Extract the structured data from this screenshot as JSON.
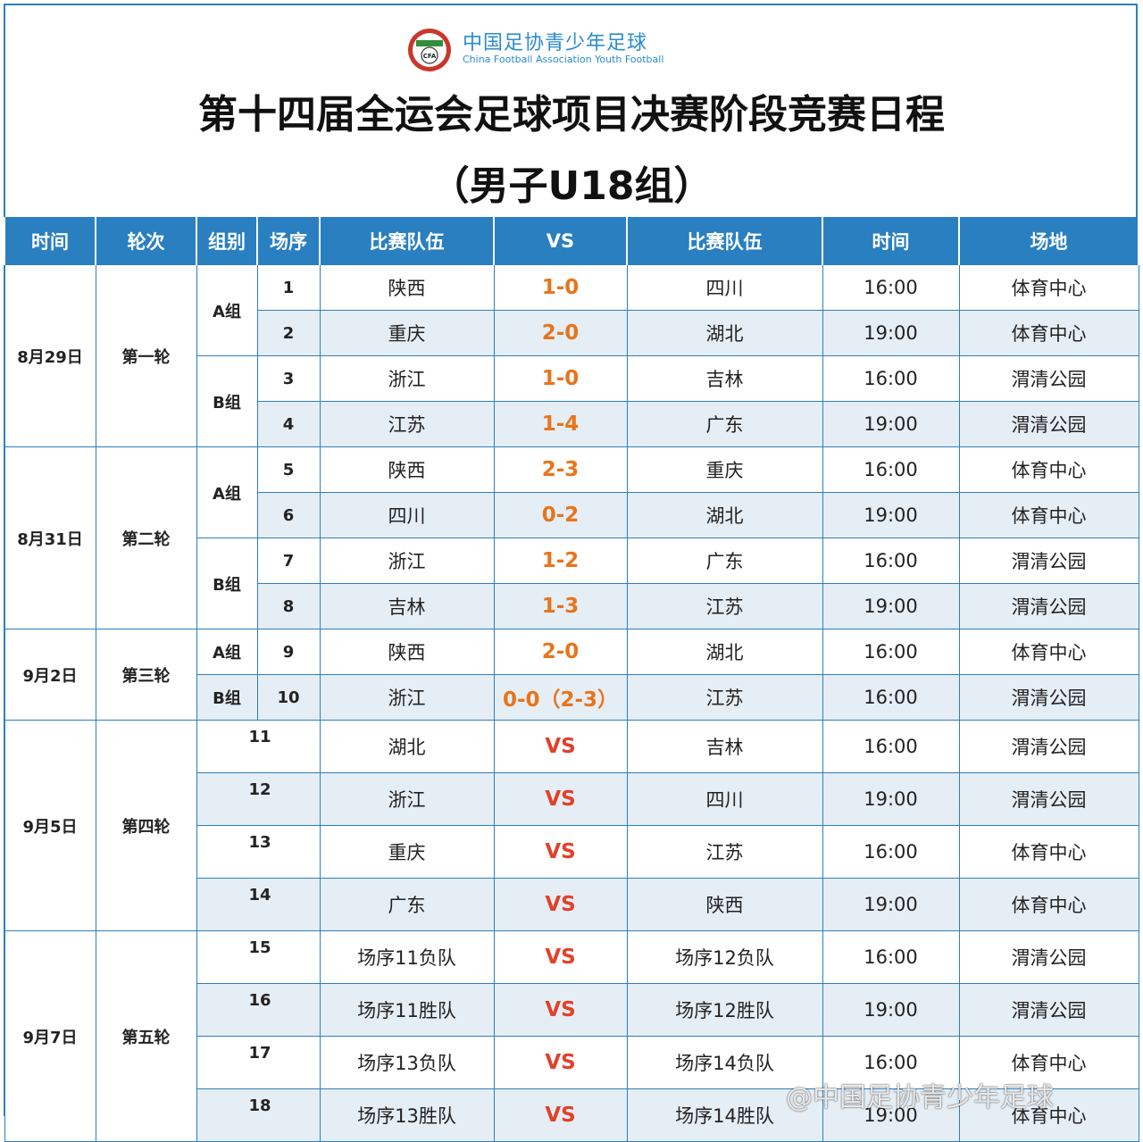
{
  "brand": {
    "name_cn": "中国足协青少年足球",
    "name_en": "China Football Association Youth Football",
    "logo_text": "CFA",
    "colors": {
      "primary": "#2a7fc1",
      "score": "#e8741c",
      "vs": "#e2412a",
      "stripe": "#e6eef5"
    }
  },
  "title": "第十四届全运会足球项目决赛阶段竞赛日程",
  "subtitle": "（男子U18组）",
  "headers": [
    "时间",
    "轮次",
    "组别",
    "场序",
    "比赛队伍",
    "VS",
    "比赛队伍",
    "时间",
    "场地"
  ],
  "days": [
    {
      "date": "8月29日",
      "round": "第一轮"
    },
    {
      "date": "8月31日",
      "round": "第二轮"
    },
    {
      "date": "9月2日",
      "round": "第三轮"
    },
    {
      "date": "9月5日",
      "round": "第四轮"
    },
    {
      "date": "9月7日",
      "round": "第五轮"
    }
  ],
  "groups": {
    "a": "A组",
    "b": "B组"
  },
  "matches": [
    {
      "seq": "1",
      "home": "陕西",
      "score": "1-0",
      "away": "四川",
      "time": "16:00",
      "venue": "体育中心"
    },
    {
      "seq": "2",
      "home": "重庆",
      "score": "2-0",
      "away": "湖北",
      "time": "19:00",
      "venue": "体育中心"
    },
    {
      "seq": "3",
      "home": "浙江",
      "score": "1-0",
      "away": "吉林",
      "time": "16:00",
      "venue": "渭清公园"
    },
    {
      "seq": "4",
      "home": "江苏",
      "score": "1-4",
      "away": "广东",
      "time": "19:00",
      "venue": "渭清公园"
    },
    {
      "seq": "5",
      "home": "陕西",
      "score": "2-3",
      "away": "重庆",
      "time": "16:00",
      "venue": "体育中心"
    },
    {
      "seq": "6",
      "home": "四川",
      "score": "0-2",
      "away": "湖北",
      "time": "19:00",
      "venue": "体育中心"
    },
    {
      "seq": "7",
      "home": "浙江",
      "score": "1-2",
      "away": "广东",
      "time": "16:00",
      "venue": "渭清公园"
    },
    {
      "seq": "8",
      "home": "吉林",
      "score": "1-3",
      "away": "江苏",
      "time": "19:00",
      "venue": "渭清公园"
    },
    {
      "seq": "9",
      "home": "陕西",
      "score": "2-0",
      "away": "湖北",
      "time": "16:00",
      "venue": "体育中心"
    },
    {
      "seq": "10",
      "home": "浙江",
      "score": "0-0（2-3）",
      "away": "江苏",
      "time": "16:00",
      "venue": "渭清公园"
    },
    {
      "seq": "11",
      "home": "湖北",
      "score": "VS",
      "away": "吉林",
      "time": "16:00",
      "venue": "渭清公园"
    },
    {
      "seq": "12",
      "home": "浙江",
      "score": "VS",
      "away": "四川",
      "time": "19:00",
      "venue": "渭清公园"
    },
    {
      "seq": "13",
      "home": "重庆",
      "score": "VS",
      "away": "江苏",
      "time": "16:00",
      "venue": "体育中心"
    },
    {
      "seq": "14",
      "home": "广东",
      "score": "VS",
      "away": "陕西",
      "time": "19:00",
      "venue": "体育中心"
    },
    {
      "seq": "15",
      "home": "场序11负队",
      "score": "VS",
      "away": "场序12负队",
      "time": "16:00",
      "venue": "渭清公园"
    },
    {
      "seq": "16",
      "home": "场序11胜队",
      "score": "VS",
      "away": "场序12胜队",
      "time": "19:00",
      "venue": "渭清公园"
    },
    {
      "seq": "17",
      "home": "场序13负队",
      "score": "VS",
      "away": "场序14负队",
      "time": "16:00",
      "venue": "体育中心"
    },
    {
      "seq": "18",
      "home": "场序13胜队",
      "score": "VS",
      "away": "场序14胜队",
      "time": "19:00",
      "venue": "体育中心"
    }
  ],
  "watermark": "@中国足协青少年足球"
}
